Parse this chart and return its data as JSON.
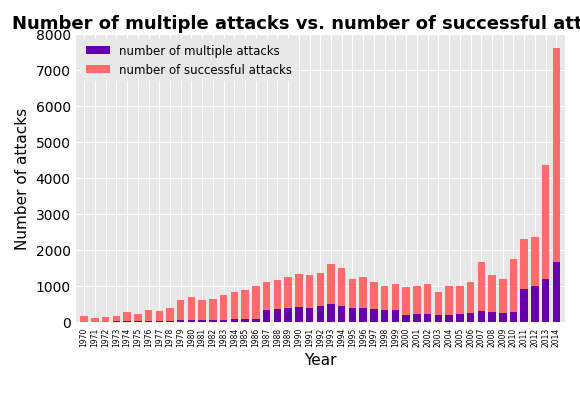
{
  "years": [
    1970,
    1971,
    1972,
    1973,
    1974,
    1975,
    1976,
    1977,
    1978,
    1979,
    1980,
    1981,
    1982,
    1983,
    1984,
    1985,
    1986,
    1987,
    1988,
    1989,
    1990,
    1991,
    1992,
    1993,
    1994,
    1995,
    1996,
    1997,
    1998,
    1999,
    2000,
    2001,
    2002,
    2003,
    2004,
    2005,
    2006,
    2007,
    2008,
    2009,
    2010,
    2011,
    2012,
    2013,
    2014
  ],
  "successful": [
    175,
    115,
    130,
    170,
    270,
    220,
    340,
    290,
    380,
    620,
    680,
    610,
    630,
    760,
    820,
    880,
    1000,
    1100,
    1150,
    1250,
    1320,
    1300,
    1350,
    1600,
    1500,
    1200,
    1250,
    1100,
    1000,
    1050,
    960,
    1000,
    1050,
    840,
    1000,
    990,
    1100,
    1650,
    1300,
    1200,
    1750,
    2300,
    2350,
    4350,
    7600
  ],
  "multiple": [
    10,
    8,
    10,
    12,
    20,
    18,
    25,
    22,
    30,
    45,
    55,
    50,
    50,
    60,
    70,
    80,
    90,
    320,
    350,
    390,
    420,
    400,
    430,
    500,
    450,
    380,
    380,
    350,
    320,
    330,
    200,
    220,
    230,
    180,
    200,
    220,
    250,
    300,
    270,
    250,
    280,
    900,
    1000,
    1200,
    1650
  ],
  "title": "Number of multiple attacks vs. number of successful attacks",
  "xlabel": "Year",
  "ylabel": "Number of attacks",
  "ylim": [
    0,
    8000
  ],
  "color_successful": "#FF6B6B",
  "color_multiple": "#6600AA",
  "bg_color": "#E8E8E8",
  "legend_multiple": "number of multiple attacks",
  "legend_successful": "number of successful attacks",
  "title_fontsize": 13,
  "label_fontsize": 11
}
